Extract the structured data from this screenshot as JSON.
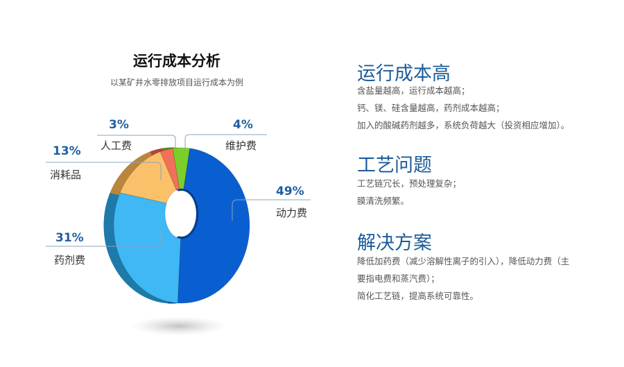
{
  "chart_data": {
    "type": "pie",
    "variant": "3d-donut",
    "title": "运行成本分析",
    "subtitle": "以某矿井水零排放项目运行成本为例",
    "categories": [
      "动力费",
      "药剂费",
      "消耗品",
      "人工费",
      "维护费"
    ],
    "values": [
      49,
      31,
      13,
      3,
      4
    ],
    "value_labels": [
      "49%",
      "31%",
      "13%",
      "3%",
      "4%"
    ],
    "colors": [
      "#0a5fd0",
      "#3fb8f5",
      "#fbc16a",
      "#f2705a",
      "#7ccf2b"
    ],
    "side_colors": [
      "#073f8f",
      "#1e7aa8",
      "#b8863e",
      "#b04634",
      "#4d8f16"
    ]
  },
  "sections": [
    {
      "heading": "运行成本高",
      "lines": [
        "含盐量越高，运行成本越高；",
        "钙、镁、硅含量越高，药剂成本越高；",
        "加入的酸碱药剂越多，系统负荷越大（投资相应增加）。"
      ]
    },
    {
      "heading": "工艺问题",
      "lines": [
        "工艺链冗长，预处理复杂；",
        "膜清洗频繁。"
      ]
    },
    {
      "heading": "解决方案",
      "lines": [
        "降低加药费（减少溶解性离子的引入），降低动力费（主",
        "要指电费和蒸汽费）；",
        "简化工艺链，提高系统可靠性。"
      ]
    }
  ]
}
